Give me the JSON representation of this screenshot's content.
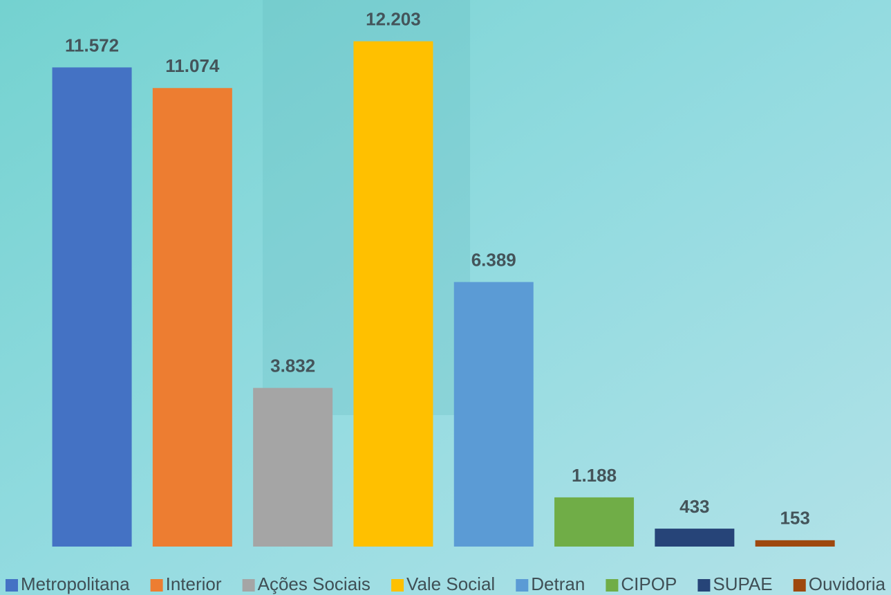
{
  "chart_data": {
    "type": "bar",
    "series": [
      {
        "name": "Metropolitana",
        "color": "#4472c4",
        "values": [
          11572
        ],
        "value_labels": [
          "11.572"
        ]
      },
      {
        "name": "Interior",
        "color": "#ed7d31",
        "values": [
          11074
        ],
        "value_labels": [
          "11.074"
        ]
      },
      {
        "name": "Ações Sociais",
        "color": "#a5a5a5",
        "values": [
          3832
        ],
        "value_labels": [
          "3.832"
        ]
      },
      {
        "name": "Vale Social",
        "color": "#ffc000",
        "values": [
          12203
        ],
        "value_labels": [
          "12.203"
        ]
      },
      {
        "name": "Detran",
        "color": "#5b9bd5",
        "values": [
          6389
        ],
        "value_labels": [
          "6.389"
        ]
      },
      {
        "name": "CIPOP",
        "color": "#70ad47",
        "values": [
          1188
        ],
        "value_labels": [
          "1.188"
        ]
      },
      {
        "name": "SUPAE",
        "color": "#264478",
        "values": [
          433
        ],
        "value_labels": [
          "433"
        ]
      },
      {
        "name": "Ouvidoria",
        "color": "#9e480e",
        "values": [
          153
        ],
        "value_labels": [
          "153"
        ]
      }
    ],
    "ylim": [
      0,
      13200
    ],
    "legend": "bottom"
  }
}
